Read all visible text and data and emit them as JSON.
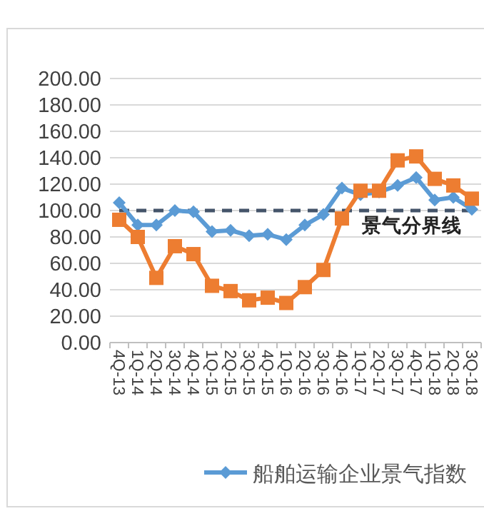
{
  "chart_data": {
    "type": "line",
    "categories": [
      "4Q-13",
      "1Q-14",
      "2Q-14",
      "3Q-14",
      "4Q-14",
      "1Q-15",
      "2Q-15",
      "3Q-15",
      "4Q-15",
      "1Q-16",
      "2Q-16",
      "3Q-16",
      "4Q-16",
      "1Q-17",
      "2Q-17",
      "3Q-17",
      "4Q-17",
      "1Q-18",
      "2Q-18",
      "3Q-18"
    ],
    "series": [
      {
        "name": "船舶运输企业景气指数",
        "color": "#5b9bd5",
        "marker": "diamond",
        "values": [
          106,
          89,
          89,
          100,
          99,
          84,
          85,
          81,
          82,
          78,
          89,
          97,
          117,
          112,
          114,
          119,
          125,
          108,
          110,
          101
        ]
      },
      {
        "color": "#ed7d31",
        "marker": "square",
        "values": [
          93,
          80,
          49,
          73,
          67,
          43,
          39,
          32,
          34,
          30,
          42,
          55,
          94,
          115,
          115,
          138,
          141,
          124,
          119,
          109
        ]
      }
    ],
    "ylim": [
      0,
      200
    ],
    "yticks": [
      {
        "value": 0,
        "label": "0.00"
      },
      {
        "value": 20,
        "label": "20.00"
      },
      {
        "value": 40,
        "label": "40.00"
      },
      {
        "value": 60,
        "label": "60.00"
      },
      {
        "value": 80,
        "label": "80.00"
      },
      {
        "value": 100,
        "label": "100.00"
      },
      {
        "value": 120,
        "label": "120.00"
      },
      {
        "value": 140,
        "label": "140.00"
      },
      {
        "value": 160,
        "label": "160.00"
      },
      {
        "value": 180,
        "label": "180.00"
      },
      {
        "value": 200,
        "label": "200.00"
      }
    ],
    "ref_lines": [
      {
        "axis": "y",
        "value": 100,
        "label": "景气分界线",
        "color": "#44546a",
        "line_style": "dashed"
      }
    ],
    "grid": "y",
    "legend": "bottom",
    "line_style": "solid"
  }
}
